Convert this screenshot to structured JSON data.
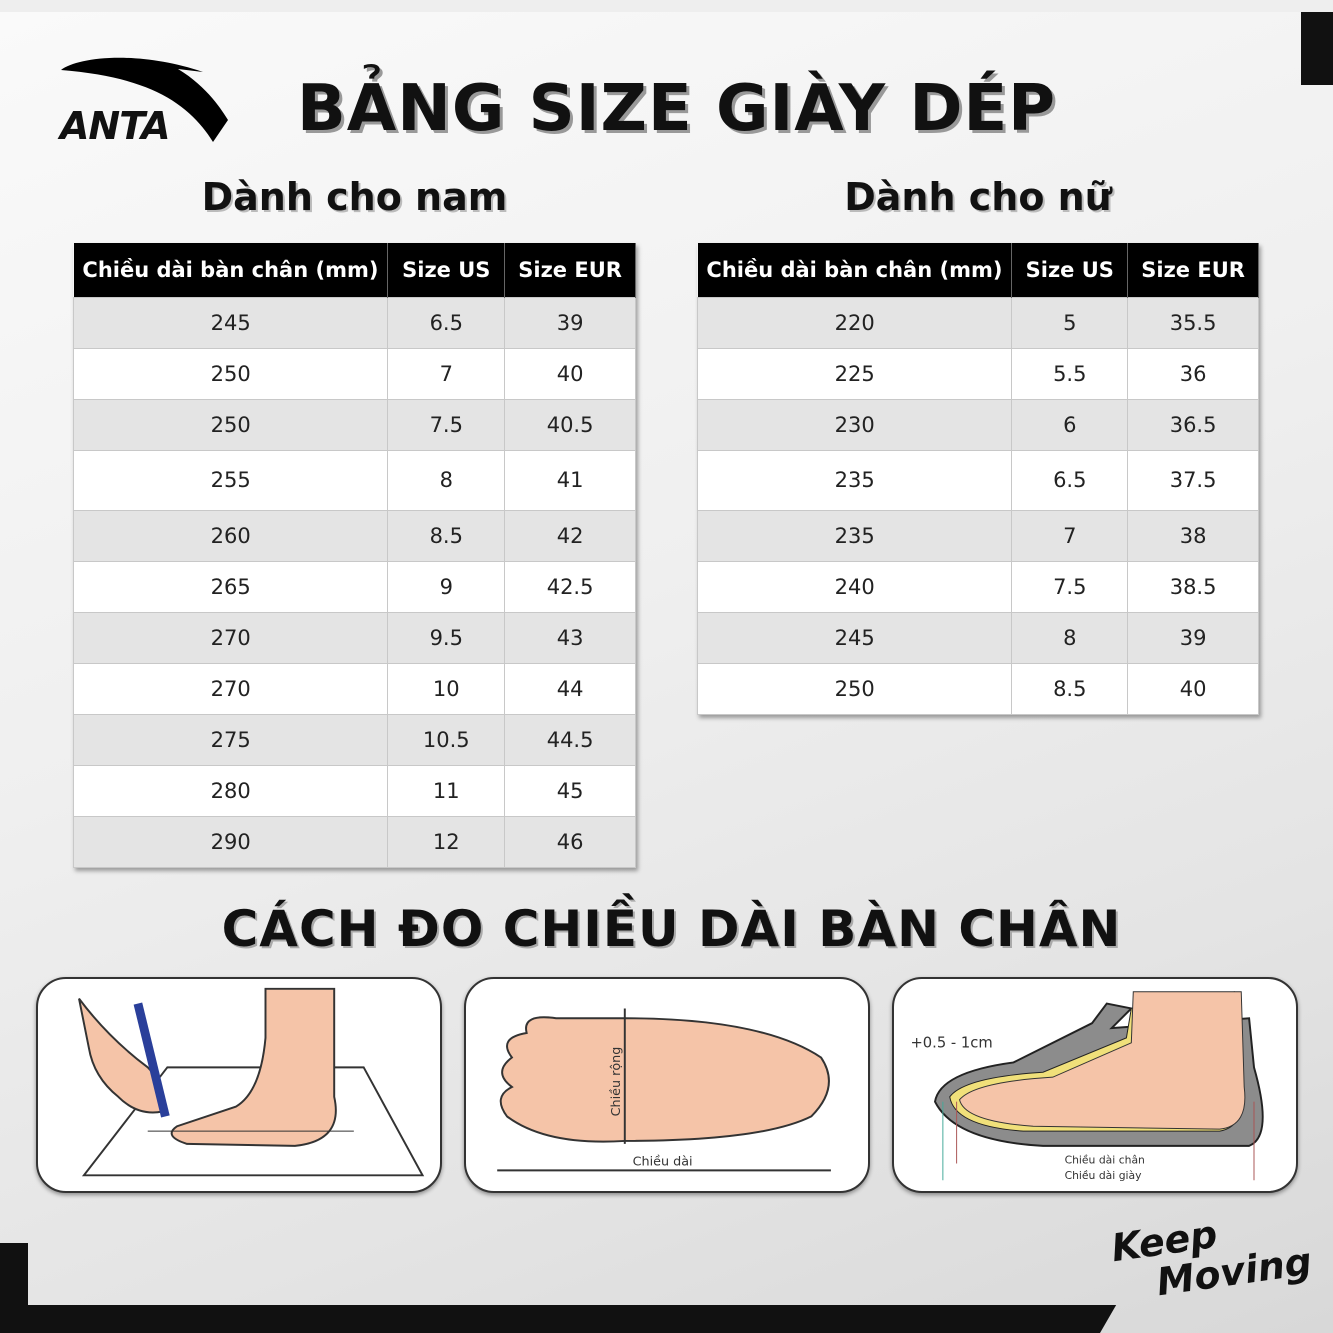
{
  "brand": {
    "logo_text": "ANTA",
    "slogan": [
      "Keep",
      "Moving"
    ]
  },
  "title": "BẢNG SIZE GIÀY DÉP",
  "headers": [
    "Chiều dài bàn chân (mm)",
    "Size US",
    "Size EUR"
  ],
  "men": {
    "heading": "Dành cho nam",
    "rows": [
      [
        "245",
        "6.5",
        "39"
      ],
      [
        "250",
        "7",
        "40"
      ],
      [
        "250",
        "7.5",
        "40.5"
      ],
      [
        "255",
        "8",
        "41"
      ],
      [
        "260",
        "8.5",
        "42"
      ],
      [
        "265",
        "9",
        "42.5"
      ],
      [
        "270",
        "9.5",
        "43"
      ],
      [
        "270",
        "10",
        "44"
      ],
      [
        "275",
        "10.5",
        "44.5"
      ],
      [
        "280",
        "11",
        "45"
      ],
      [
        "290",
        "12",
        "46"
      ]
    ]
  },
  "women": {
    "heading": "Dành cho nữ",
    "rows": [
      [
        "220",
        "5",
        "35.5"
      ],
      [
        "225",
        "5.5",
        "36"
      ],
      [
        "230",
        "6",
        "36.5"
      ],
      [
        "235",
        "6.5",
        "37.5"
      ],
      [
        "235",
        "7",
        "38"
      ],
      [
        "240",
        "7.5",
        "38.5"
      ],
      [
        "245",
        "8",
        "39"
      ],
      [
        "250",
        "8.5",
        "40"
      ]
    ]
  },
  "measure": {
    "title": "CÁCH ĐO CHIỀU DÀI BÀN CHÂN",
    "width_label": "Chiều rộng",
    "length_label": "Chiều dài",
    "allowance": "+0.5 - 1cm",
    "foot_length": "Chiều dài chân",
    "shoe_length": "Chiều dài giày"
  },
  "colors": {
    "header_bg": "#000000",
    "stripe": "#e4e4e4",
    "skin": "#f5c4a8",
    "shoe_gray": "#8c8c8c",
    "insole_yellow": "#f0e07a"
  }
}
